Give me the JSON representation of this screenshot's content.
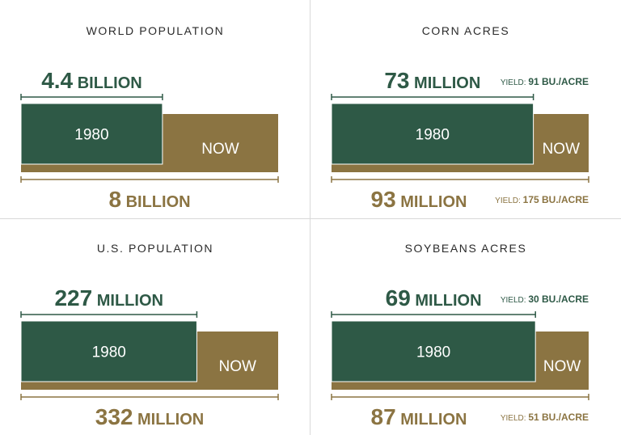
{
  "colors": {
    "then": "#2e5946",
    "now": "#8b7442",
    "then_text": "#2e5946",
    "now_text": "#8b7442"
  },
  "chart_data": [
    {
      "type": "bar",
      "title": "WORLD POPULATION",
      "categories": [
        "1980",
        "NOW"
      ],
      "values": [
        4.4,
        8
      ],
      "unit": "BILLION",
      "then_label": {
        "num": "4.4",
        "unit": "BILLION"
      },
      "now_label": {
        "num": "8",
        "unit": "BILLION"
      },
      "then_yield": null,
      "now_yield": null
    },
    {
      "type": "bar",
      "title": "CORN ACRES",
      "categories": [
        "1980",
        "NOW"
      ],
      "values": [
        73,
        93
      ],
      "unit": "MILLION",
      "then_label": {
        "num": "73",
        "unit": "MILLION"
      },
      "now_label": {
        "num": "93",
        "unit": "MILLION"
      },
      "then_yield": {
        "prefix": "YIELD:",
        "value": "91 BU./ACRE"
      },
      "now_yield": {
        "prefix": "YIELD:",
        "value": "175 BU./ACRE"
      }
    },
    {
      "type": "bar",
      "title": "U.S. POPULATION",
      "categories": [
        "1980",
        "NOW"
      ],
      "values": [
        227,
        332
      ],
      "unit": "MILLION",
      "then_label": {
        "num": "227",
        "unit": "MILLION"
      },
      "now_label": {
        "num": "332",
        "unit": "MILLION"
      },
      "then_yield": null,
      "now_yield": null
    },
    {
      "type": "bar",
      "title": "SOYBEANS ACRES",
      "categories": [
        "1980",
        "NOW"
      ],
      "values": [
        69,
        87
      ],
      "unit": "MILLION",
      "then_label": {
        "num": "69",
        "unit": "MILLION"
      },
      "now_label": {
        "num": "87",
        "unit": "MILLION"
      },
      "then_yield": {
        "prefix": "YIELD:",
        "value": "30 BU./ACRE"
      },
      "now_yield": {
        "prefix": "YIELD:",
        "value": "51 BU./ACRE"
      }
    }
  ]
}
